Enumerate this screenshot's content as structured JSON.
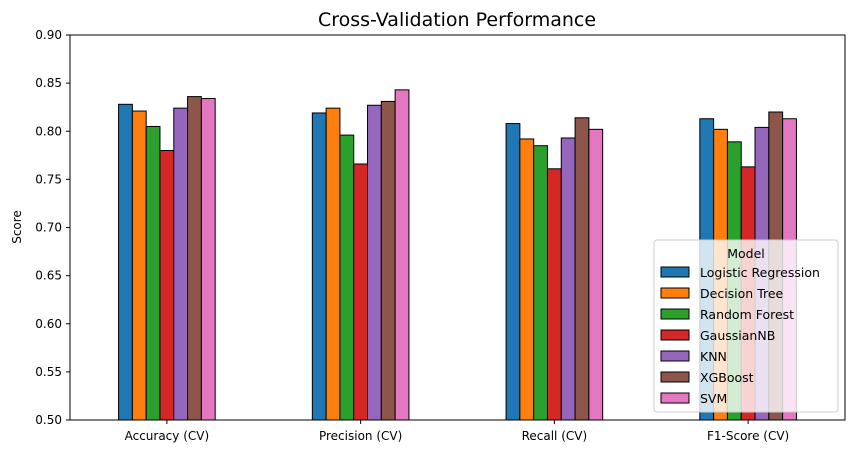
{
  "chart_data": {
    "type": "bar",
    "title": "Cross-Validation Performance",
    "xlabel": "",
    "ylabel": "Score",
    "ylim": [
      0.5,
      0.9
    ],
    "yticks": [
      "0.50",
      "0.55",
      "0.60",
      "0.65",
      "0.70",
      "0.75",
      "0.80",
      "0.85",
      "0.90"
    ],
    "categories": [
      "Accuracy (CV)",
      "Precision (CV)",
      "Recall (CV)",
      "F1-Score (CV)"
    ],
    "legend": {
      "title": "Model",
      "placement": "bottom-right"
    },
    "grid": false,
    "series": [
      {
        "name": "Logistic Regression",
        "color": "#1f77b4",
        "values": [
          0.828,
          0.819,
          0.808,
          0.813
        ]
      },
      {
        "name": "Decision Tree",
        "color": "#ff7f0e",
        "values": [
          0.821,
          0.824,
          0.792,
          0.802
        ]
      },
      {
        "name": "Random Forest",
        "color": "#2ca02c",
        "values": [
          0.805,
          0.796,
          0.785,
          0.789
        ]
      },
      {
        "name": "GaussianNB",
        "color": "#d62728",
        "values": [
          0.78,
          0.766,
          0.761,
          0.763
        ]
      },
      {
        "name": "KNN",
        "color": "#9467bd",
        "values": [
          0.824,
          0.827,
          0.793,
          0.804
        ]
      },
      {
        "name": "XGBoost",
        "color": "#8c564b",
        "values": [
          0.836,
          0.831,
          0.814,
          0.82
        ]
      },
      {
        "name": "SVM",
        "color": "#e377c2",
        "values": [
          0.834,
          0.843,
          0.802,
          0.813
        ]
      }
    ]
  }
}
